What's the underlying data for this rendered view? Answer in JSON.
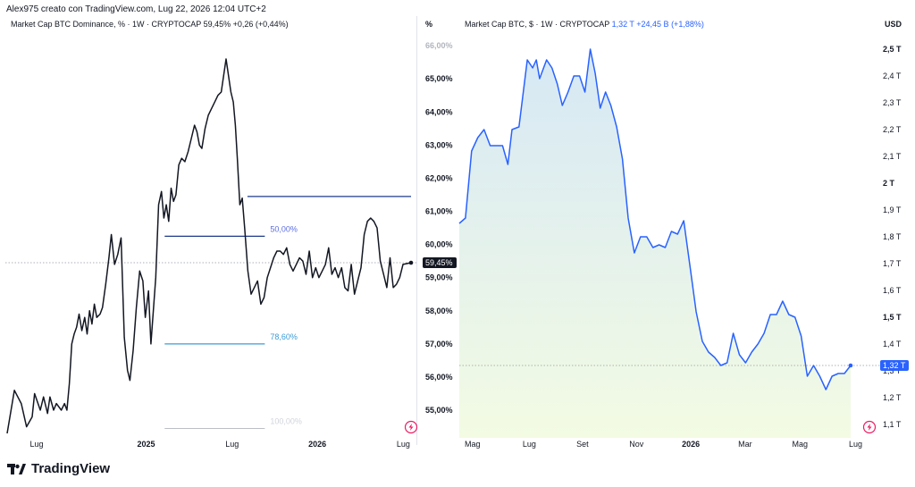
{
  "header": {
    "attribution": "Alex975 creato con TradingView.com, Lug 22, 2026 12:04 UTC+2"
  },
  "footer": {
    "brand": "TradingView"
  },
  "icons": {
    "lightning": "lightning-icon",
    "logo": "tradingview-logo-icon"
  },
  "colors": {
    "left_line": "#131722",
    "right_line": "#2962ff",
    "fib_dark": "#1e3a8a",
    "fib_mid": "#5b6ee1",
    "fib_light": "#3d9bd6",
    "fib_grey": "#b2b5be",
    "badge_left": "#131722",
    "badge_right": "#2962ff",
    "lightning": "#e91e63"
  },
  "chart_data": [
    {
      "type": "line",
      "legend": {
        "title": "Market Cap BTC Dominance, % · 1W · CRYPTOCAP",
        "last": "59,45%",
        "change": "+0,26 (+0,44%)"
      },
      "unit": "%",
      "ylim": [
        54.3,
        66.3
      ],
      "y_ticks": [
        {
          "value": 66.0,
          "label": "66,00%",
          "faded": true
        },
        {
          "value": 65.0,
          "label": "65,00%"
        },
        {
          "value": 64.0,
          "label": "64,00%"
        },
        {
          "value": 63.0,
          "label": "63,00%"
        },
        {
          "value": 62.0,
          "label": "62,00%"
        },
        {
          "value": 61.0,
          "label": "61,00%"
        },
        {
          "value": 60.0,
          "label": "60,00%"
        },
        {
          "value": 59.0,
          "label": "59,00%"
        },
        {
          "value": 58.0,
          "label": "58,00%"
        },
        {
          "value": 57.0,
          "label": "57,00%"
        },
        {
          "value": 56.0,
          "label": "56,00%"
        },
        {
          "value": 55.0,
          "label": "55,00%"
        }
      ],
      "x_ticks": [
        {
          "t": 0.073,
          "label": "Lug"
        },
        {
          "t": 0.344,
          "label": "2025",
          "bold": true
        },
        {
          "t": 0.557,
          "label": "Lug"
        },
        {
          "t": 0.768,
          "label": "2026",
          "bold": true
        },
        {
          "t": 0.981,
          "label": "Lug"
        }
      ],
      "last_value": {
        "value": 59.45,
        "label": "59,45%"
      },
      "series": [
        {
          "values": [
            54.3,
            55.6,
            55.2,
            54.5,
            54.8,
            55.5,
            55.0,
            55.4,
            54.9,
            55.4,
            55.0,
            55.2,
            55.0,
            55.2,
            55.0,
            55.8,
            57.0,
            57.3,
            57.5,
            57.9,
            57.4,
            57.8,
            57.3,
            58.0,
            57.6,
            58.2,
            57.8,
            57.9,
            58.1,
            58.8,
            59.6,
            60.3,
            59.4,
            59.7,
            60.2,
            57.2,
            56.2,
            55.9,
            56.8,
            58.1,
            59.2,
            58.9,
            57.8,
            58.6,
            57.0,
            58.0,
            59.0,
            61.2,
            61.6,
            60.8,
            61.2,
            60.7,
            61.7,
            61.3,
            61.5,
            62.4,
            62.6,
            62.5,
            62.8,
            63.2,
            63.6,
            63.4,
            63.0,
            62.9,
            63.5,
            63.9,
            64.1,
            64.3,
            64.5,
            64.6,
            65.1,
            65.6,
            65.1,
            64.6,
            64.3,
            63.6,
            62.6,
            61.2,
            61.4,
            60.5,
            59.2,
            58.5,
            58.7,
            58.9,
            58.2,
            58.4,
            59.0,
            59.3,
            59.6,
            59.8,
            59.8,
            59.7,
            59.9,
            59.4,
            59.2,
            59.4,
            59.6,
            59.5,
            59.1,
            59.8,
            59.0,
            59.3,
            59.0,
            59.2,
            59.4,
            59.9,
            59.1,
            59.3,
            59.0,
            59.3,
            58.7,
            58.6,
            59.4,
            58.5,
            58.9,
            59.3,
            60.3,
            60.7,
            60.8,
            60.7,
            60.5,
            59.5,
            59.1,
            58.7,
            59.6,
            58.7,
            58.8,
            59.0,
            59.4,
            59.45
          ],
          "t": [
            0.0,
            0.018,
            0.035,
            0.048,
            0.062,
            0.068,
            0.082,
            0.09,
            0.1,
            0.106,
            0.115,
            0.122,
            0.134,
            0.142,
            0.148,
            0.154,
            0.16,
            0.166,
            0.172,
            0.178,
            0.185,
            0.192,
            0.198,
            0.204,
            0.21,
            0.216,
            0.222,
            0.23,
            0.236,
            0.244,
            0.252,
            0.258,
            0.266,
            0.274,
            0.282,
            0.29,
            0.298,
            0.304,
            0.312,
            0.32,
            0.328,
            0.336,
            0.342,
            0.35,
            0.356,
            0.362,
            0.368,
            0.375,
            0.382,
            0.388,
            0.394,
            0.4,
            0.406,
            0.412,
            0.418,
            0.425,
            0.432,
            0.44,
            0.448,
            0.456,
            0.464,
            0.47,
            0.476,
            0.482,
            0.49,
            0.498,
            0.506,
            0.514,
            0.522,
            0.53,
            0.536,
            0.542,
            0.548,
            0.554,
            0.56,
            0.565,
            0.57,
            0.576,
            0.582,
            0.588,
            0.596,
            0.604,
            0.612,
            0.62,
            0.628,
            0.636,
            0.644,
            0.652,
            0.66,
            0.668,
            0.676,
            0.684,
            0.692,
            0.7,
            0.708,
            0.716,
            0.724,
            0.732,
            0.74,
            0.748,
            0.756,
            0.764,
            0.772,
            0.78,
            0.788,
            0.796,
            0.804,
            0.812,
            0.82,
            0.828,
            0.836,
            0.844,
            0.852,
            0.86,
            0.868,
            0.876,
            0.884,
            0.892,
            0.9,
            0.908,
            0.916,
            0.924,
            0.932,
            0.94,
            0.948,
            0.956,
            0.964,
            0.972,
            0.98,
            1.0
          ]
        }
      ],
      "fib_levels": [
        {
          "value": 61.45,
          "t1": 0.595,
          "t2": 1.0,
          "label": "",
          "style": "dark"
        },
        {
          "value": 60.25,
          "t1": 0.39,
          "t2": 0.638,
          "label": "50,00%",
          "style": "dark"
        },
        {
          "value": 57.0,
          "t1": 0.39,
          "t2": 0.638,
          "label": "78,60%",
          "style": "light"
        },
        {
          "value": 54.45,
          "t1": 0.39,
          "t2": 0.638,
          "label": "100,00%",
          "style": "grey"
        }
      ]
    },
    {
      "type": "area",
      "legend": {
        "title": "Market Cap BTC, $ · 1W · CRYPTOCAP",
        "last": "1,32 T",
        "change": "+24,45 B (+1,88%)"
      },
      "unit": "USD",
      "ylim": [
        1.05,
        2.55
      ],
      "y_ticks": [
        {
          "value": 2.5,
          "label": "2,5 T",
          "bold": true
        },
        {
          "value": 2.4,
          "label": "2,4 T"
        },
        {
          "value": 2.3,
          "label": "2,3 T"
        },
        {
          "value": 2.2,
          "label": "2,2 T"
        },
        {
          "value": 2.1,
          "label": "2,1 T"
        },
        {
          "value": 2.0,
          "label": "2 T",
          "bold": true
        },
        {
          "value": 1.9,
          "label": "1,9 T"
        },
        {
          "value": 1.8,
          "label": "1,8 T"
        },
        {
          "value": 1.7,
          "label": "1,7 T"
        },
        {
          "value": 1.6,
          "label": "1,6 T"
        },
        {
          "value": 1.5,
          "label": "1,5 T",
          "bold": true
        },
        {
          "value": 1.4,
          "label": "1,4 T"
        },
        {
          "value": 1.3,
          "label": "1,3 T"
        },
        {
          "value": 1.2,
          "label": "1,2 T"
        },
        {
          "value": 1.1,
          "label": "1,1 T"
        }
      ],
      "x_ticks": [
        {
          "t": 0.032,
          "label": "Mag"
        },
        {
          "t": 0.17,
          "label": "Lug"
        },
        {
          "t": 0.299,
          "label": "Set"
        },
        {
          "t": 0.43,
          "label": "Nov"
        },
        {
          "t": 0.562,
          "label": "2026",
          "bold": true
        },
        {
          "t": 0.694,
          "label": "Mar"
        },
        {
          "t": 0.827,
          "label": "Mag"
        },
        {
          "t": 0.962,
          "label": "Lug"
        }
      ],
      "last_value": {
        "value": 1.32,
        "label": "1,32 T"
      },
      "series": [
        {
          "values": [
            1.85,
            1.87,
            2.12,
            2.17,
            2.2,
            2.14,
            2.14,
            2.14,
            2.07,
            2.2,
            2.21,
            2.46,
            2.43,
            2.46,
            2.39,
            2.46,
            2.43,
            2.37,
            2.29,
            2.34,
            2.4,
            2.4,
            2.34,
            2.5,
            2.41,
            2.28,
            2.34,
            2.29,
            2.21,
            2.09,
            1.87,
            1.74,
            1.8,
            1.8,
            1.76,
            1.77,
            1.76,
            1.82,
            1.81,
            1.86,
            1.69,
            1.52,
            1.41,
            1.37,
            1.35,
            1.32,
            1.33,
            1.44,
            1.36,
            1.33,
            1.37,
            1.4,
            1.44,
            1.51,
            1.51,
            1.56,
            1.51,
            1.5,
            1.43,
            1.28,
            1.32,
            1.28,
            1.23,
            1.28,
            1.29,
            1.29,
            1.32
          ],
          "t": [
            0.0,
            0.015,
            0.03,
            0.045,
            0.06,
            0.075,
            0.09,
            0.105,
            0.118,
            0.128,
            0.145,
            0.165,
            0.178,
            0.187,
            0.195,
            0.212,
            0.225,
            0.238,
            0.25,
            0.264,
            0.278,
            0.292,
            0.305,
            0.318,
            0.33,
            0.342,
            0.355,
            0.368,
            0.382,
            0.396,
            0.41,
            0.425,
            0.44,
            0.455,
            0.47,
            0.485,
            0.5,
            0.515,
            0.53,
            0.545,
            0.56,
            0.575,
            0.59,
            0.605,
            0.62,
            0.635,
            0.65,
            0.665,
            0.68,
            0.695,
            0.71,
            0.725,
            0.74,
            0.755,
            0.77,
            0.785,
            0.8,
            0.815,
            0.83,
            0.845,
            0.86,
            0.875,
            0.89,
            0.905,
            0.92,
            0.935,
            0.95
          ]
        }
      ]
    }
  ]
}
